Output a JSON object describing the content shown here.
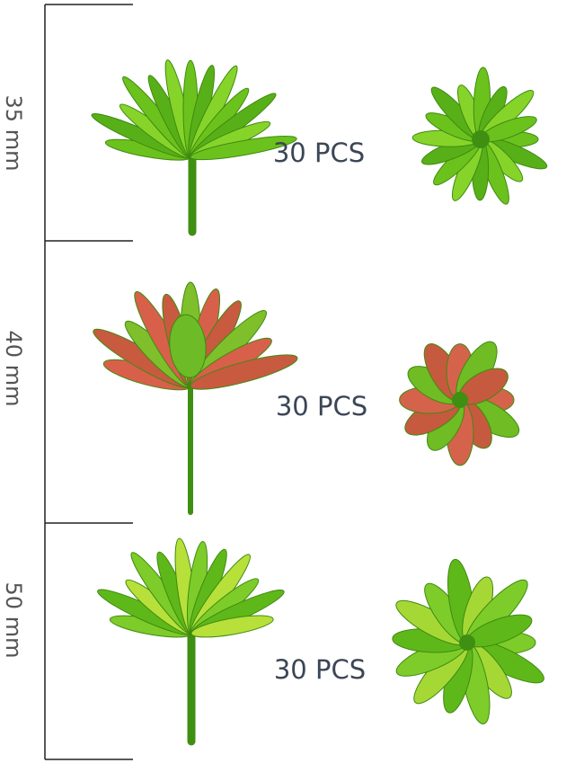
{
  "rows": [
    {
      "size": "35 mm",
      "count": "30 PCS"
    },
    {
      "size": "40 mm",
      "count": "30 PCS"
    },
    {
      "size": "50 mm",
      "count": "30 PCS"
    }
  ]
}
